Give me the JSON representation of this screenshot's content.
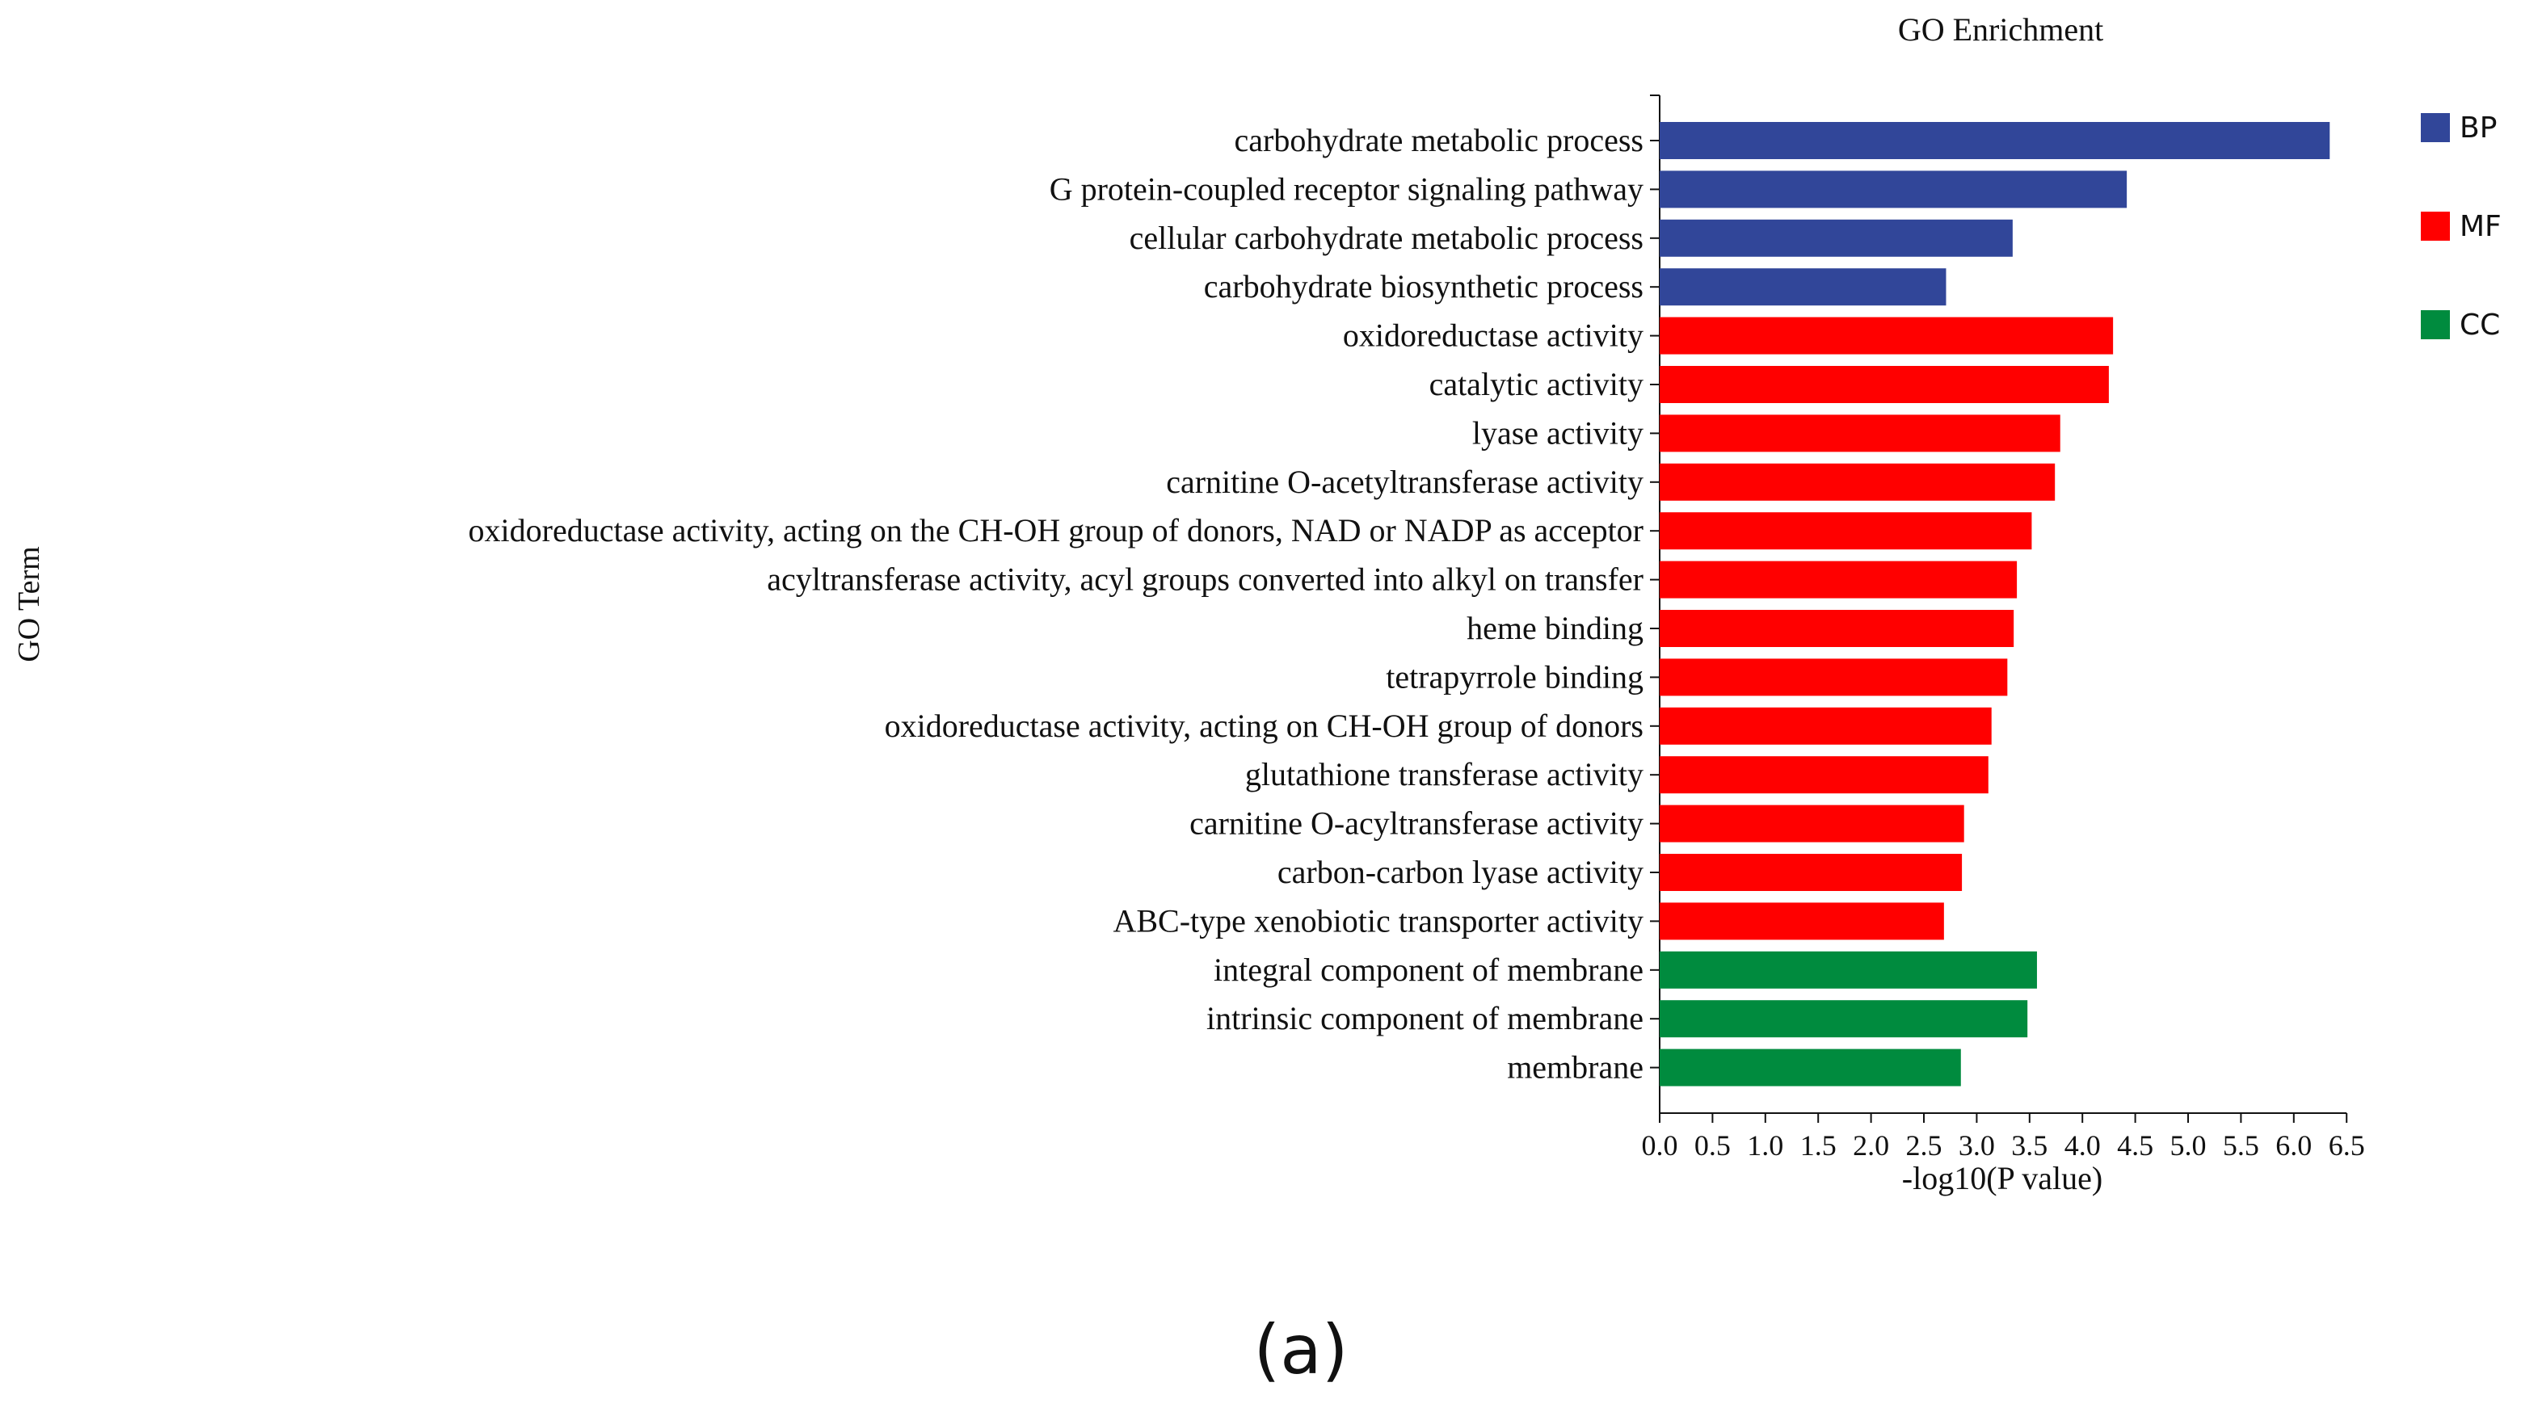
{
  "figure_label": "(a)",
  "chart_data": {
    "type": "bar",
    "orientation": "horizontal",
    "title": "GO Enrichment",
    "xlabel": "-log10(P value)",
    "ylabel": "GO Term",
    "xlim": [
      0,
      6.5
    ],
    "xticks": [
      "0.0",
      "0.5",
      "1.0",
      "1.5",
      "2.0",
      "2.5",
      "3.0",
      "3.5",
      "4.0",
      "4.5",
      "5.0",
      "5.5",
      "6.0",
      "6.5"
    ],
    "grid": false,
    "legend_position": "top-right",
    "legend": [
      {
        "name": "BP",
        "color": "#314699"
      },
      {
        "name": "MF",
        "color": "#ff0000"
      },
      {
        "name": "CC",
        "color": "#008b3e"
      }
    ],
    "categories": [
      "carbohydrate metabolic process",
      "G protein-coupled receptor signaling pathway",
      "cellular carbohydrate metabolic process",
      "carbohydrate biosynthetic process",
      "oxidoreductase activity",
      "catalytic activity",
      "lyase activity",
      "carnitine O-acetyltransferase activity",
      "oxidoreductase activity, acting on the CH-OH group of donors, NAD or NADP as acceptor",
      "acyltransferase activity, acyl groups converted into alkyl on transfer",
      "heme binding",
      "tetrapyrrole binding",
      "oxidoreductase activity, acting on CH-OH group of donors",
      "glutathione transferase activity",
      "carnitine O-acyltransferase activity",
      "carbon-carbon lyase activity",
      "ABC-type xenobiotic transporter activity",
      "integral component of membrane",
      "intrinsic component of membrane",
      "membrane"
    ],
    "values": [
      6.34,
      4.42,
      3.34,
      2.71,
      4.29,
      4.25,
      3.79,
      3.74,
      3.52,
      3.38,
      3.35,
      3.29,
      3.14,
      3.11,
      2.88,
      2.86,
      2.69,
      3.57,
      3.48,
      2.85
    ],
    "groups": [
      "BP",
      "BP",
      "BP",
      "BP",
      "MF",
      "MF",
      "MF",
      "MF",
      "MF",
      "MF",
      "MF",
      "MF",
      "MF",
      "MF",
      "MF",
      "MF",
      "MF",
      "CC",
      "CC",
      "CC"
    ]
  }
}
